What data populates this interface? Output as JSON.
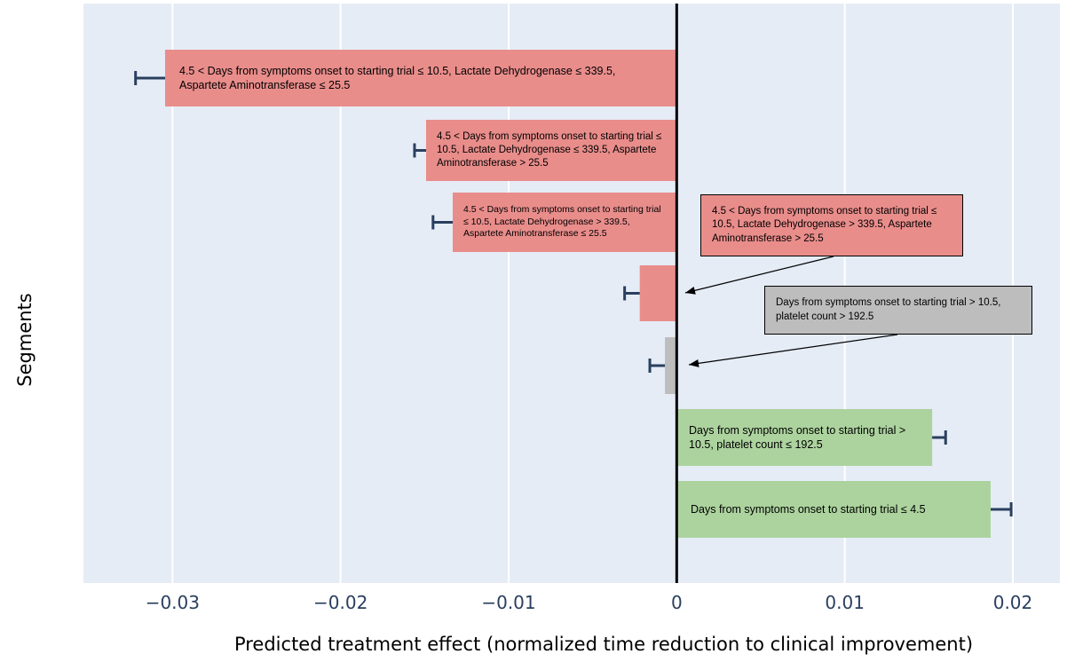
{
  "chart_data": {
    "type": "bar",
    "orientation": "horizontal",
    "xlabel": "Predicted treatment effect (normalized time reduction to clinical improvement)",
    "ylabel": "Segments",
    "xlim": [
      -0.0353,
      0.0228
    ],
    "xticks": [
      -0.03,
      -0.02,
      -0.01,
      0,
      0.01,
      0.02
    ],
    "xtick_labels": [
      "−0.03",
      "−0.02",
      "−0.01",
      "0",
      "0.01",
      "0.02"
    ],
    "grid": true,
    "colors": {
      "negative": "#e98d8b",
      "neutral": "#bdbdbd",
      "positive": "#acd39e",
      "error": "#2a3f5f",
      "background": "#e5ecf6",
      "zero_line": "#000000"
    },
    "segments": [
      {
        "label": "4.5 < Days from symptoms onset to starting trial ≤ 10.5, Lactate Dehydrogenase ≤ 339.5, Aspartete Aminotransferase ≤ 25.5",
        "value": -0.0302,
        "error": 0.002,
        "color": "negative"
      },
      {
        "label": "4.5 < Days from symptoms onset to starting trial ≤ 10.5, Lactate Dehydrogenase ≤ 339.5, Aspartete Aminotransferase > 25.5",
        "value": -0.0148,
        "error": 0.0008,
        "color": "negative"
      },
      {
        "label": "4.5 < Days from symptoms onset to starting trial ≤ 10.5, Lactate Dehydrogenase > 339.5, Aspartete Aminotransferase ≤ 25.5",
        "value": -0.0132,
        "error": 0.0013,
        "color": "negative"
      },
      {
        "label": "4.5 < Days from symptoms onset to starting trial ≤ 10.5, Lactate Dehydrogenase > 339.5, Aspartete Aminotransferase > 25.5",
        "value": -0.0022,
        "error": 0.0009,
        "color": "negative"
      },
      {
        "label": "Days from symptoms onset to starting trial > 10.5, platelet count > 192.5",
        "value": -0.0007,
        "error": 0.0009,
        "color": "neutral"
      },
      {
        "label": "Days from symptoms onset to starting trial > 10.5, platelet count ≤ 192.5",
        "value": 0.0152,
        "error": 0.0008,
        "color": "positive"
      },
      {
        "label": "Days from symptoms onset to starting trial ≤ 4.5",
        "value": 0.0186,
        "error": 0.0013,
        "color": "positive"
      }
    ]
  }
}
